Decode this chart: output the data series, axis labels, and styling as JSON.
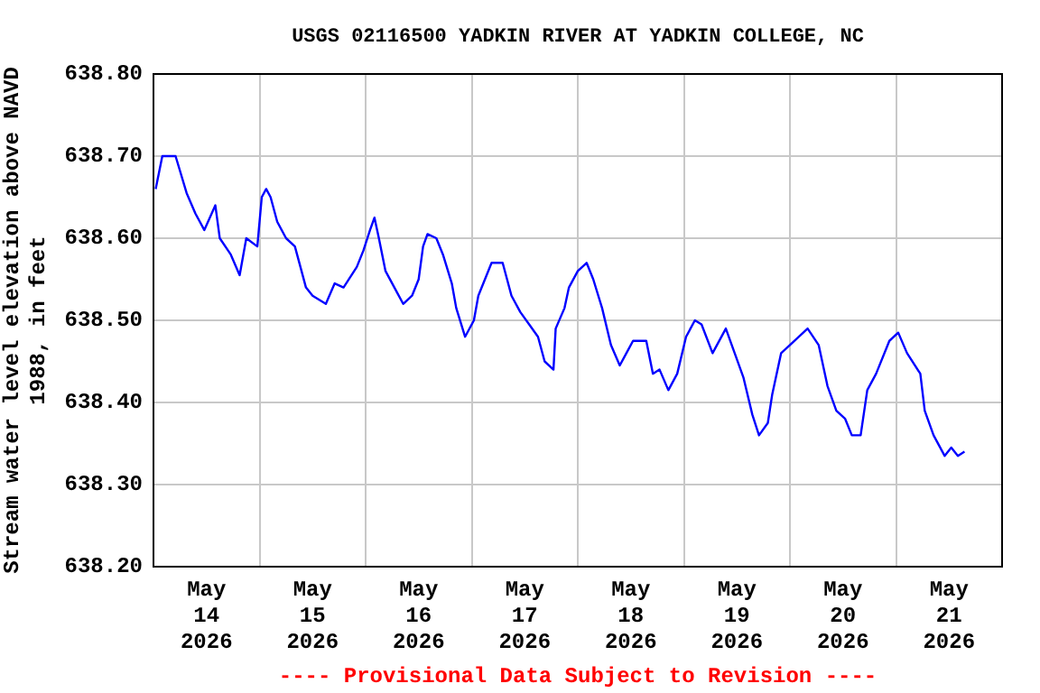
{
  "chart_data": {
    "type": "line",
    "title": "USGS 02116500 YADKIN RIVER AT YADKIN COLLEGE, NC",
    "ylabel": "Stream water level elevation above NAVD 1988, in feet",
    "annotations": [
      "---- Provisional Data Subject to Revision ----"
    ],
    "x": [
      "2026-05-14T00:30",
      "2026-05-14T02:00",
      "2026-05-14T05:00",
      "2026-05-14T07:30",
      "2026-05-14T09:30",
      "2026-05-14T11:30",
      "2026-05-14T14:00",
      "2026-05-14T15:00",
      "2026-05-14T17:30",
      "2026-05-14T19:30",
      "2026-05-14T21:00",
      "2026-05-14T23:30",
      "2026-05-15T00:30",
      "2026-05-15T01:30",
      "2026-05-15T02:30",
      "2026-05-15T04:00",
      "2026-05-15T06:00",
      "2026-05-15T08:00",
      "2026-05-15T09:30",
      "2026-05-15T10:30",
      "2026-05-15T12:00",
      "2026-05-15T15:00",
      "2026-05-15T17:00",
      "2026-05-15T19:00",
      "2026-05-15T22:00",
      "2026-05-15T23:30",
      "2026-05-16T01:00",
      "2026-05-16T02:00",
      "2026-05-16T03:00",
      "2026-05-16T04:30",
      "2026-05-16T07:00",
      "2026-05-16T08:30",
      "2026-05-16T10:30",
      "2026-05-16T12:00",
      "2026-05-16T13:00",
      "2026-05-16T14:00",
      "2026-05-16T16:00",
      "2026-05-16T17:30",
      "2026-05-16T19:30",
      "2026-05-16T20:30",
      "2026-05-16T22:30",
      "2026-05-17T00:30",
      "2026-05-17T01:30",
      "2026-05-17T03:00",
      "2026-05-17T04:30",
      "2026-05-17T07:00",
      "2026-05-17T09:00",
      "2026-05-17T11:00",
      "2026-05-17T13:00",
      "2026-05-17T15:00",
      "2026-05-17T16:30",
      "2026-05-17T18:30",
      "2026-05-17T19:00",
      "2026-05-17T21:00",
      "2026-05-17T22:00",
      "2026-05-18T00:00",
      "2026-05-18T02:00",
      "2026-05-18T03:30",
      "2026-05-18T05:30",
      "2026-05-18T07:30",
      "2026-05-18T09:30",
      "2026-05-18T11:00",
      "2026-05-18T12:30",
      "2026-05-18T15:30",
      "2026-05-18T17:00",
      "2026-05-18T18:30",
      "2026-05-18T20:30",
      "2026-05-18T22:30",
      "2026-05-19T00:30",
      "2026-05-19T02:30",
      "2026-05-19T04:00",
      "2026-05-19T06:30",
      "2026-05-19T09:30",
      "2026-05-19T11:30",
      "2026-05-19T13:30",
      "2026-05-19T15:30",
      "2026-05-19T17:00",
      "2026-05-19T19:00",
      "2026-05-19T20:00",
      "2026-05-19T22:00",
      "2026-05-20T00:00",
      "2026-05-20T04:00",
      "2026-05-20T06:30",
      "2026-05-20T08:30",
      "2026-05-20T10:30",
      "2026-05-20T12:30",
      "2026-05-20T14:00",
      "2026-05-20T16:00",
      "2026-05-20T17:30",
      "2026-05-20T19:30",
      "2026-05-20T22:30",
      "2026-05-21T00:30",
      "2026-05-21T02:30",
      "2026-05-21T05:30",
      "2026-05-21T06:30",
      "2026-05-21T08:30",
      "2026-05-21T11:00",
      "2026-05-21T12:30",
      "2026-05-21T14:00",
      "2026-05-21T15:30"
    ],
    "series": [
      {
        "color": "#0000ff",
        "values": [
          638.66,
          638.7,
          638.7,
          638.655,
          638.63,
          638.61,
          638.64,
          638.6,
          638.58,
          638.555,
          638.6,
          638.59,
          638.65,
          638.66,
          638.65,
          638.62,
          638.6,
          638.59,
          638.56,
          638.54,
          638.53,
          638.52,
          638.545,
          638.54,
          638.565,
          638.585,
          638.61,
          638.625,
          638.6,
          638.56,
          638.535,
          638.52,
          638.53,
          638.55,
          638.59,
          638.605,
          638.6,
          638.58,
          638.545,
          638.515,
          638.48,
          638.5,
          638.53,
          638.55,
          638.57,
          638.57,
          638.53,
          638.51,
          638.495,
          638.48,
          638.45,
          638.44,
          638.49,
          638.515,
          638.54,
          638.56,
          638.57,
          638.55,
          638.515,
          638.47,
          638.445,
          638.46,
          638.475,
          638.475,
          638.435,
          638.44,
          638.415,
          638.435,
          638.48,
          638.5,
          638.495,
          638.46,
          638.49,
          638.46,
          638.43,
          638.385,
          638.36,
          638.375,
          638.41,
          638.46,
          638.47,
          638.49,
          638.47,
          638.42,
          638.39,
          638.38,
          638.36,
          638.36,
          638.415,
          638.435,
          638.475,
          638.485,
          638.46,
          638.435,
          638.39,
          638.36,
          638.335,
          638.345,
          638.335,
          638.34
        ]
      }
    ],
    "xlim": [
      "2026-05-14T00:00",
      "2026-05-22T00:00"
    ],
    "xticks": [
      {
        "value": "2026-05-14T12:00",
        "label": "May 14 2026"
      },
      {
        "value": "2026-05-15T00:00",
        "label": null
      },
      {
        "value": "2026-05-15T12:00",
        "label": "May 15 2026"
      },
      {
        "value": "2026-05-16T00:00",
        "label": null
      },
      {
        "value": "2026-05-16T12:00",
        "label": "May 16 2026"
      },
      {
        "value": "2026-05-17T00:00",
        "label": null
      },
      {
        "value": "2026-05-17T12:00",
        "label": "May 17 2026"
      },
      {
        "value": "2026-05-18T00:00",
        "label": null
      },
      {
        "value": "2026-05-18T12:00",
        "label": "May 18 2026"
      },
      {
        "value": "2026-05-19T00:00",
        "label": null
      },
      {
        "value": "2026-05-19T12:00",
        "label": "May 19 2026"
      },
      {
        "value": "2026-05-20T00:00",
        "label": null
      },
      {
        "value": "2026-05-20T12:00",
        "label": "May 20 2026"
      },
      {
        "value": "2026-05-21T00:00",
        "label": null
      },
      {
        "value": "2026-05-21T12:00",
        "label": "May 21 2026"
      }
    ],
    "ylim": [
      638.2,
      638.8
    ],
    "yticks": [
      {
        "value": 638.2,
        "label": "638.20"
      },
      {
        "value": 638.3,
        "label": "638.30"
      },
      {
        "value": 638.4,
        "label": "638.40"
      },
      {
        "value": 638.5,
        "label": "638.50"
      },
      {
        "value": 638.6,
        "label": "638.60"
      },
      {
        "value": 638.7,
        "label": "638.70"
      },
      {
        "value": 638.8,
        "label": "638.80"
      }
    ],
    "grid": true,
    "legend": false,
    "marker": "none",
    "line_style": "solid"
  }
}
